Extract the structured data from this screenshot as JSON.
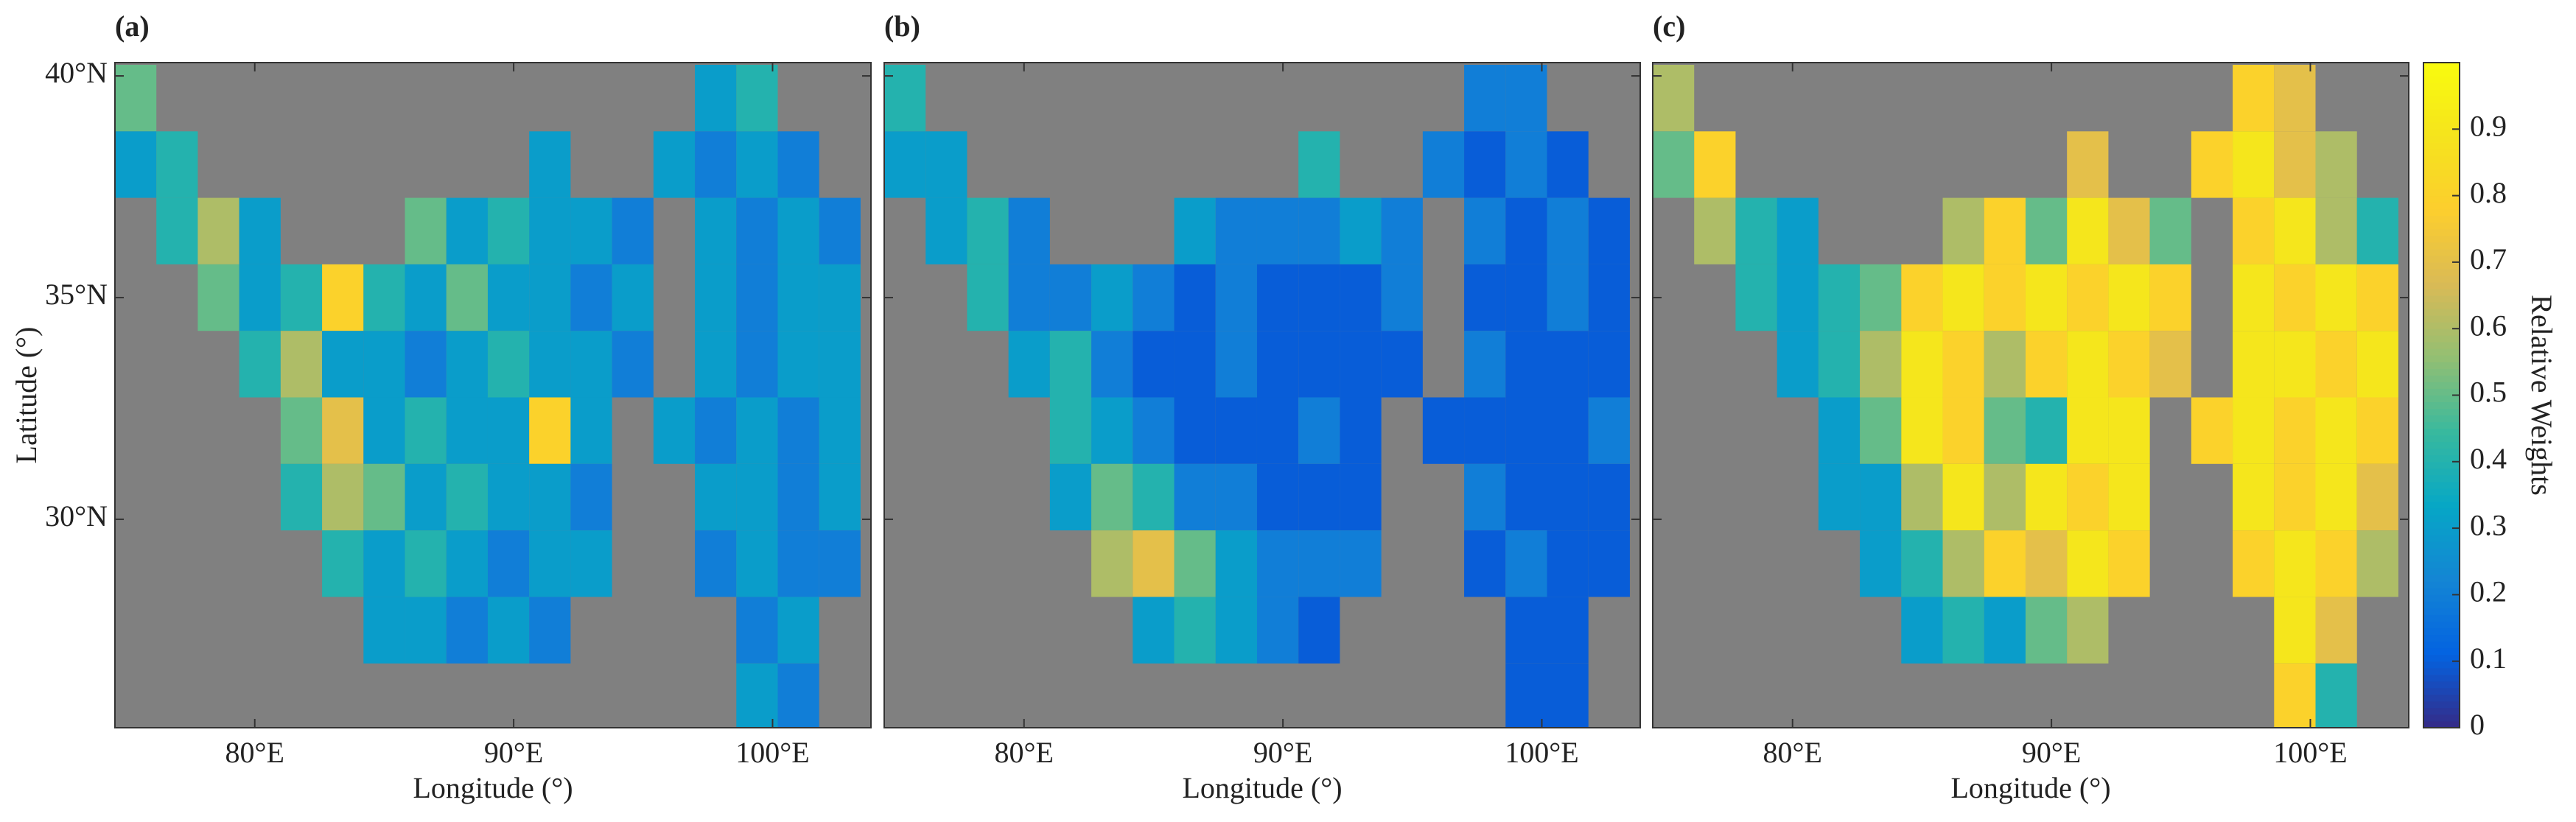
{
  "chart_data": [
    {
      "type": "heatmap",
      "label": "(a)",
      "xlabel": "Longitude (°)",
      "ylabel": "Latitude (°)",
      "background": "#808080",
      "xlim": [
        74.6,
        103.8
      ],
      "ylim": [
        25.3,
        40.3
      ],
      "xticks": [
        {
          "value": 80,
          "label": "80°E"
        },
        {
          "value": 90,
          "label": "90°E"
        },
        {
          "value": 100,
          "label": "100°E"
        }
      ],
      "yticks": [
        {
          "value": 30,
          "label": "30°N"
        },
        {
          "value": 35,
          "label": "35°N"
        },
        {
          "value": 40,
          "label": "40°N"
        }
      ],
      "x": [
        75.4,
        77.0,
        78.6,
        80.2,
        81.8,
        83.4,
        85.0,
        86.6,
        88.2,
        89.8,
        91.4,
        93.0,
        94.6,
        96.2,
        97.8,
        99.4,
        101.0,
        102.6
      ],
      "y": [
        39.5,
        38.0,
        36.5,
        35.0,
        33.5,
        32.0,
        30.5,
        29.0,
        27.5,
        26.0
      ],
      "values": [
        [
          0.5,
          null,
          null,
          null,
          null,
          null,
          null,
          null,
          null,
          null,
          null,
          null,
          null,
          null,
          0.3,
          0.4,
          null,
          null
        ],
        [
          0.3,
          0.4,
          null,
          null,
          null,
          null,
          null,
          null,
          null,
          null,
          0.3,
          null,
          null,
          0.3,
          0.2,
          0.3,
          0.2,
          null
        ],
        [
          null,
          0.4,
          0.6,
          0.3,
          null,
          null,
          null,
          0.5,
          0.3,
          0.4,
          0.3,
          0.3,
          0.2,
          null,
          0.3,
          0.2,
          0.3,
          0.2
        ],
        [
          null,
          null,
          0.5,
          0.3,
          0.4,
          0.8,
          0.4,
          0.3,
          0.5,
          0.3,
          0.3,
          0.2,
          0.3,
          null,
          0.3,
          0.2,
          0.3,
          0.3
        ],
        [
          null,
          null,
          null,
          0.4,
          0.6,
          0.3,
          0.3,
          0.2,
          0.3,
          0.4,
          0.3,
          0.3,
          0.2,
          null,
          0.3,
          0.2,
          0.3,
          0.3
        ],
        [
          null,
          null,
          null,
          null,
          0.5,
          0.7,
          0.3,
          0.4,
          0.3,
          0.3,
          0.8,
          0.3,
          null,
          0.3,
          0.2,
          0.3,
          0.2,
          0.3
        ],
        [
          null,
          null,
          null,
          null,
          0.4,
          0.6,
          0.5,
          0.3,
          0.4,
          0.3,
          0.3,
          0.2,
          null,
          null,
          0.3,
          0.3,
          0.2,
          0.3
        ],
        [
          null,
          null,
          null,
          null,
          null,
          0.4,
          0.3,
          0.4,
          0.3,
          0.2,
          0.3,
          0.3,
          null,
          null,
          0.2,
          0.3,
          0.2,
          0.2
        ],
        [
          null,
          null,
          null,
          null,
          null,
          null,
          0.3,
          0.3,
          0.2,
          0.3,
          0.2,
          null,
          null,
          null,
          null,
          0.2,
          0.3,
          null
        ],
        [
          null,
          null,
          null,
          null,
          null,
          null,
          null,
          null,
          null,
          null,
          null,
          null,
          null,
          null,
          null,
          0.3,
          0.2,
          null
        ]
      ]
    },
    {
      "type": "heatmap",
      "label": "(b)",
      "xlabel": "Longitude (°)",
      "background": "#808080",
      "show_ytick_labels": false,
      "xlim": [
        74.6,
        103.8
      ],
      "ylim": [
        25.3,
        40.3
      ],
      "xticks": [
        {
          "value": 80,
          "label": "80°E"
        },
        {
          "value": 90,
          "label": "90°E"
        },
        {
          "value": 100,
          "label": "100°E"
        }
      ],
      "yticks": [
        30,
        35,
        40
      ],
      "x": [
        75.4,
        77.0,
        78.6,
        80.2,
        81.8,
        83.4,
        85.0,
        86.6,
        88.2,
        89.8,
        91.4,
        93.0,
        94.6,
        96.2,
        97.8,
        99.4,
        101.0,
        102.6
      ],
      "y": [
        39.5,
        38.0,
        36.5,
        35.0,
        33.5,
        32.0,
        30.5,
        29.0,
        27.5,
        26.0
      ],
      "values": [
        [
          0.4,
          null,
          null,
          null,
          null,
          null,
          null,
          null,
          null,
          null,
          null,
          null,
          null,
          null,
          0.2,
          0.2,
          null,
          null
        ],
        [
          0.3,
          0.3,
          null,
          null,
          null,
          null,
          null,
          null,
          null,
          null,
          0.4,
          null,
          null,
          0.2,
          0.1,
          0.2,
          0.1,
          null
        ],
        [
          null,
          0.3,
          0.4,
          0.2,
          null,
          null,
          null,
          0.3,
          0.2,
          0.2,
          0.2,
          0.3,
          0.2,
          null,
          0.2,
          0.1,
          0.2,
          0.1
        ],
        [
          null,
          null,
          0.4,
          0.2,
          0.2,
          0.3,
          0.2,
          0.1,
          0.2,
          0.1,
          0.1,
          0.1,
          0.2,
          null,
          0.1,
          0.1,
          0.2,
          0.1
        ],
        [
          null,
          null,
          null,
          0.3,
          0.4,
          0.2,
          0.1,
          0.1,
          0.2,
          0.1,
          0.1,
          0.1,
          0.1,
          null,
          0.2,
          0.1,
          0.1,
          0.1
        ],
        [
          null,
          null,
          null,
          null,
          0.4,
          0.3,
          0.2,
          0.1,
          0.1,
          0.1,
          0.2,
          0.1,
          null,
          0.1,
          0.1,
          0.1,
          0.1,
          0.2
        ],
        [
          null,
          null,
          null,
          null,
          0.3,
          0.5,
          0.4,
          0.2,
          0.2,
          0.1,
          0.1,
          0.1,
          null,
          null,
          0.2,
          0.1,
          0.1,
          0.1
        ],
        [
          null,
          null,
          null,
          null,
          null,
          0.6,
          0.7,
          0.5,
          0.3,
          0.2,
          0.2,
          0.2,
          null,
          null,
          0.1,
          0.2,
          0.1,
          0.1
        ],
        [
          null,
          null,
          null,
          null,
          null,
          null,
          0.3,
          0.4,
          0.3,
          0.2,
          0.1,
          null,
          null,
          null,
          null,
          0.1,
          0.1,
          null
        ],
        [
          null,
          null,
          null,
          null,
          null,
          null,
          null,
          null,
          null,
          null,
          null,
          null,
          null,
          null,
          null,
          0.1,
          0.1,
          null
        ]
      ]
    },
    {
      "type": "heatmap",
      "label": "(c)",
      "xlabel": "Longitude (°)",
      "background": "#808080",
      "show_ytick_labels": false,
      "xlim": [
        74.6,
        103.8
      ],
      "ylim": [
        25.3,
        40.3
      ],
      "xticks": [
        {
          "value": 80,
          "label": "80°E"
        },
        {
          "value": 90,
          "label": "90°E"
        },
        {
          "value": 100,
          "label": "100°E"
        }
      ],
      "yticks": [
        30,
        35,
        40
      ],
      "x": [
        75.4,
        77.0,
        78.6,
        80.2,
        81.8,
        83.4,
        85.0,
        86.6,
        88.2,
        89.8,
        91.4,
        93.0,
        94.6,
        96.2,
        97.8,
        99.4,
        101.0,
        102.6
      ],
      "y": [
        39.5,
        38.0,
        36.5,
        35.0,
        33.5,
        32.0,
        30.5,
        29.0,
        27.5,
        26.0
      ],
      "values": [
        [
          0.6,
          null,
          null,
          null,
          null,
          null,
          null,
          null,
          null,
          null,
          null,
          null,
          null,
          null,
          0.8,
          0.7,
          null,
          null
        ],
        [
          0.5,
          0.8,
          null,
          null,
          null,
          null,
          null,
          null,
          null,
          null,
          0.7,
          null,
          null,
          0.8,
          0.9,
          0.7,
          0.6,
          null
        ],
        [
          null,
          0.6,
          0.4,
          0.3,
          null,
          null,
          null,
          0.6,
          0.8,
          0.5,
          0.9,
          0.7,
          0.5,
          null,
          0.8,
          0.9,
          0.6,
          0.4
        ],
        [
          null,
          null,
          0.4,
          0.3,
          0.4,
          0.5,
          0.8,
          0.9,
          0.8,
          0.9,
          0.8,
          0.9,
          0.8,
          null,
          0.9,
          0.8,
          0.9,
          0.8
        ],
        [
          null,
          null,
          null,
          0.3,
          0.4,
          0.6,
          0.9,
          0.8,
          0.6,
          0.8,
          0.9,
          0.8,
          0.7,
          null,
          0.9,
          0.9,
          0.8,
          0.9
        ],
        [
          null,
          null,
          null,
          null,
          0.3,
          0.5,
          0.9,
          0.8,
          0.5,
          0.4,
          0.9,
          0.9,
          null,
          0.8,
          0.9,
          0.8,
          0.9,
          0.8
        ],
        [
          null,
          null,
          null,
          null,
          0.3,
          0.3,
          0.6,
          0.9,
          0.6,
          0.9,
          0.8,
          0.9,
          null,
          null,
          0.9,
          0.8,
          0.9,
          0.7
        ],
        [
          null,
          null,
          null,
          null,
          null,
          0.3,
          0.4,
          0.6,
          0.8,
          0.7,
          0.9,
          0.8,
          null,
          null,
          0.8,
          0.9,
          0.8,
          0.6
        ],
        [
          null,
          null,
          null,
          null,
          null,
          null,
          0.3,
          0.4,
          0.3,
          0.5,
          0.6,
          null,
          null,
          null,
          null,
          0.9,
          0.7,
          null
        ],
        [
          null,
          null,
          null,
          null,
          null,
          null,
          null,
          null,
          null,
          null,
          null,
          null,
          null,
          null,
          null,
          0.8,
          0.4,
          null
        ]
      ],
      "colorbar": {
        "label": "Relative Weights",
        "clim": [
          0,
          1
        ],
        "ticks": [
          0,
          0.1,
          0.2,
          0.3,
          0.4,
          0.5,
          0.6,
          0.7,
          0.8,
          0.9
        ],
        "colors": [
          "#352a87",
          "#0363e1",
          "#1485d4",
          "#06a7c6",
          "#38b99e",
          "#92bf73",
          "#d9ba56",
          "#fcce2e",
          "#f5e41d",
          "#f9fb0e"
        ]
      }
    }
  ]
}
